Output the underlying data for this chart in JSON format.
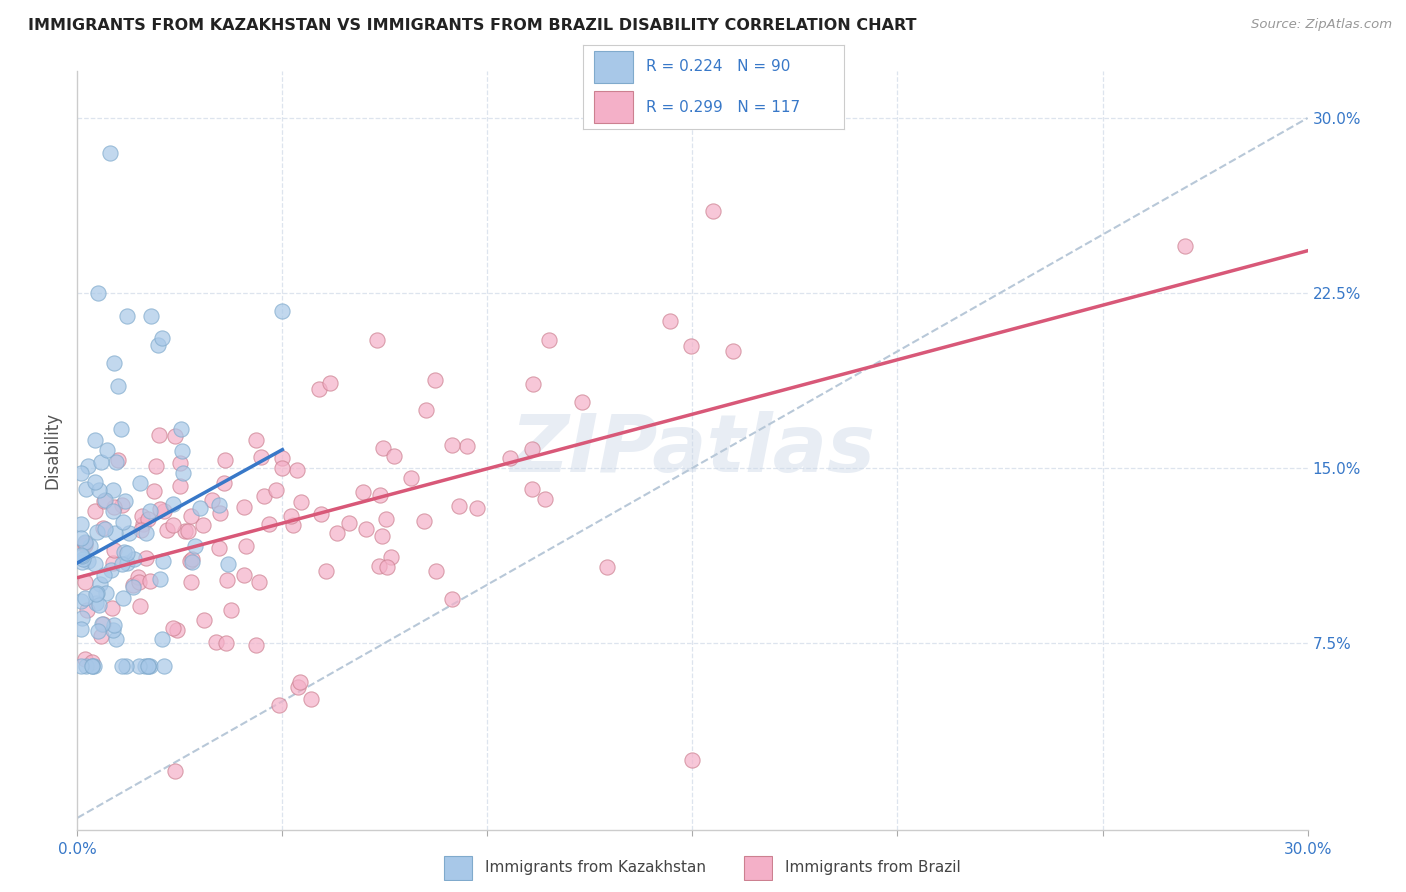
{
  "title": "IMMIGRANTS FROM KAZAKHSTAN VS IMMIGRANTS FROM BRAZIL DISABILITY CORRELATION CHART",
  "source": "Source: ZipAtlas.com",
  "ylabel": "Disability",
  "xlim": [
    0.0,
    0.3
  ],
  "ylim": [
    -0.005,
    0.32
  ],
  "yticks": [
    0.075,
    0.15,
    0.225,
    0.3
  ],
  "ytick_labels": [
    "7.5%",
    "15.0%",
    "22.5%",
    "30.0%"
  ],
  "xtick_labels_show": [
    "0.0%",
    "30.0%"
  ],
  "kazakhstan_R": 0.224,
  "kazakhstan_N": 90,
  "brazil_R": 0.299,
  "brazil_N": 117,
  "kazakhstan_color": "#a8c8e8",
  "brazil_color": "#f4b0c8",
  "kazakhstan_edge_color": "#80aacc",
  "brazil_edge_color": "#cc8090",
  "kazakhstan_line_color": "#3878c8",
  "brazil_line_color": "#d85878",
  "dashed_line_color": "#b8c8d8",
  "legend_text_color": "#3878c8",
  "background_color": "#ffffff",
  "grid_color": "#dde4ee",
  "watermark": "ZIPatlas",
  "watermark_color": "#ccd8e8"
}
